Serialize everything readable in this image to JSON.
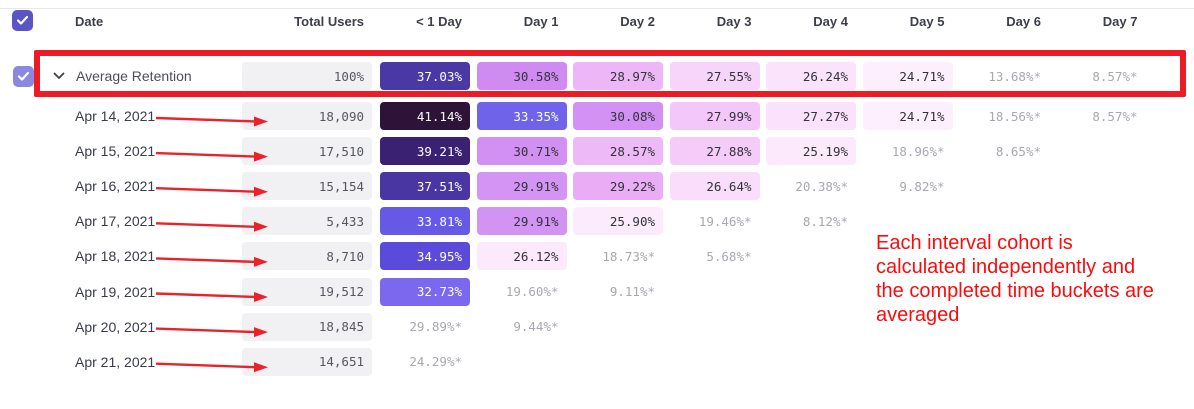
{
  "table": {
    "header": {
      "date": "Date",
      "total_users": "Total Users",
      "buckets": [
        "< 1 Day",
        "Day 1",
        "Day 2",
        "Day 3",
        "Day 4",
        "Day 5",
        "Day 6",
        "Day 7"
      ]
    },
    "average_row": {
      "label": "Average Retention",
      "total": "100%",
      "cells": [
        {
          "t": "37.03%",
          "bg": "#4A39A4",
          "light": true
        },
        {
          "t": "30.58%",
          "bg": "#CF8BF1"
        },
        {
          "t": "28.97%",
          "bg": "#EDB7F7"
        },
        {
          "t": "27.55%",
          "bg": "#F7D4FA"
        },
        {
          "t": "26.24%",
          "bg": "#FBE3FC"
        },
        {
          "t": "24.71%",
          "bg": "#FDEFFD"
        },
        {
          "t": "13.68%*",
          "muted": true
        },
        {
          "t": "8.57%*",
          "muted": true
        }
      ]
    },
    "rows": [
      {
        "date": "Apr 14, 2021",
        "total": "18,090",
        "cells": [
          {
            "t": "41.14%",
            "bg": "#2D1337",
            "light": true
          },
          {
            "t": "33.35%",
            "bg": "#6F63E9",
            "light": true
          },
          {
            "t": "30.08%",
            "bg": "#D391F3"
          },
          {
            "t": "27.99%",
            "bg": "#F3C7F9"
          },
          {
            "t": "27.27%",
            "bg": "#FBE2FC"
          },
          {
            "t": "24.71%",
            "bg": "#FDEFFD"
          },
          {
            "t": "18.56%*",
            "muted": true
          },
          {
            "t": "8.57%*",
            "muted": true
          }
        ]
      },
      {
        "date": "Apr 15, 2021",
        "total": "17,510",
        "cells": [
          {
            "t": "39.21%",
            "bg": "#3B2172",
            "light": true
          },
          {
            "t": "30.71%",
            "bg": "#D190F2"
          },
          {
            "t": "28.57%",
            "bg": "#EDB9F7"
          },
          {
            "t": "27.88%",
            "bg": "#F4CBF9"
          },
          {
            "t": "25.19%",
            "bg": "#FCEAFC"
          },
          {
            "t": "18.96%*",
            "muted": true
          },
          {
            "t": "8.65%*",
            "muted": true
          },
          null
        ]
      },
      {
        "date": "Apr 16, 2021",
        "total": "15,154",
        "cells": [
          {
            "t": "37.51%",
            "bg": "#4936A3",
            "light": true
          },
          {
            "t": "29.91%",
            "bg": "#D494F3"
          },
          {
            "t": "29.22%",
            "bg": "#E9ADF6"
          },
          {
            "t": "26.64%",
            "bg": "#F9DDFB"
          },
          {
            "t": "20.38%*",
            "muted": true
          },
          {
            "t": "9.82%*",
            "muted": true
          },
          null,
          null
        ]
      },
      {
        "date": "Apr 17, 2021",
        "total": "5,433",
        "cells": [
          {
            "t": "33.81%",
            "bg": "#6659E6",
            "light": true
          },
          {
            "t": "29.91%",
            "bg": "#D393F3"
          },
          {
            "t": "25.90%",
            "bg": "#FCEBFC"
          },
          {
            "t": "19.46%*",
            "muted": true
          },
          {
            "t": "8.12%*",
            "muted": true
          },
          null,
          null,
          null
        ]
      },
      {
        "date": "Apr 18, 2021",
        "total": "8,710",
        "cells": [
          {
            "t": "34.95%",
            "bg": "#5B4BDB",
            "light": true
          },
          {
            "t": "26.12%",
            "bg": "#FCE9FC"
          },
          {
            "t": "18.73%*",
            "muted": true
          },
          {
            "t": "5.68%*",
            "muted": true
          },
          null,
          null,
          null,
          null
        ]
      },
      {
        "date": "Apr 19, 2021",
        "total": "19,512",
        "cells": [
          {
            "t": "32.73%",
            "bg": "#7B68EE",
            "light": true
          },
          {
            "t": "19.60%*",
            "muted": true
          },
          {
            "t": "9.11%*",
            "muted": true
          },
          null,
          null,
          null,
          null,
          null
        ]
      },
      {
        "date": "Apr 20, 2021",
        "total": "18,845",
        "cells": [
          {
            "t": "29.89%*",
            "muted": true
          },
          {
            "t": "9.44%*",
            "muted": true
          },
          null,
          null,
          null,
          null,
          null,
          null
        ]
      },
      {
        "date": "Apr 21, 2021",
        "total": "14,651",
        "cells": [
          {
            "t": "24.29%*",
            "muted": true
          },
          null,
          null,
          null,
          null,
          null,
          null,
          null
        ]
      }
    ]
  },
  "annotations": {
    "note_lines": [
      "Each interval cohort is",
      "calculated independently and",
      "the completed time buckets are",
      "averaged"
    ],
    "note_color": "#FA0C0C",
    "shape_color": "#E8232B",
    "highlight_border_color": "#EC1C24"
  },
  "colors": {
    "header_checkbox": "#5A55C7",
    "average_checkbox": "#8D88DF",
    "total_cell_bg": "#F1F1F4"
  }
}
